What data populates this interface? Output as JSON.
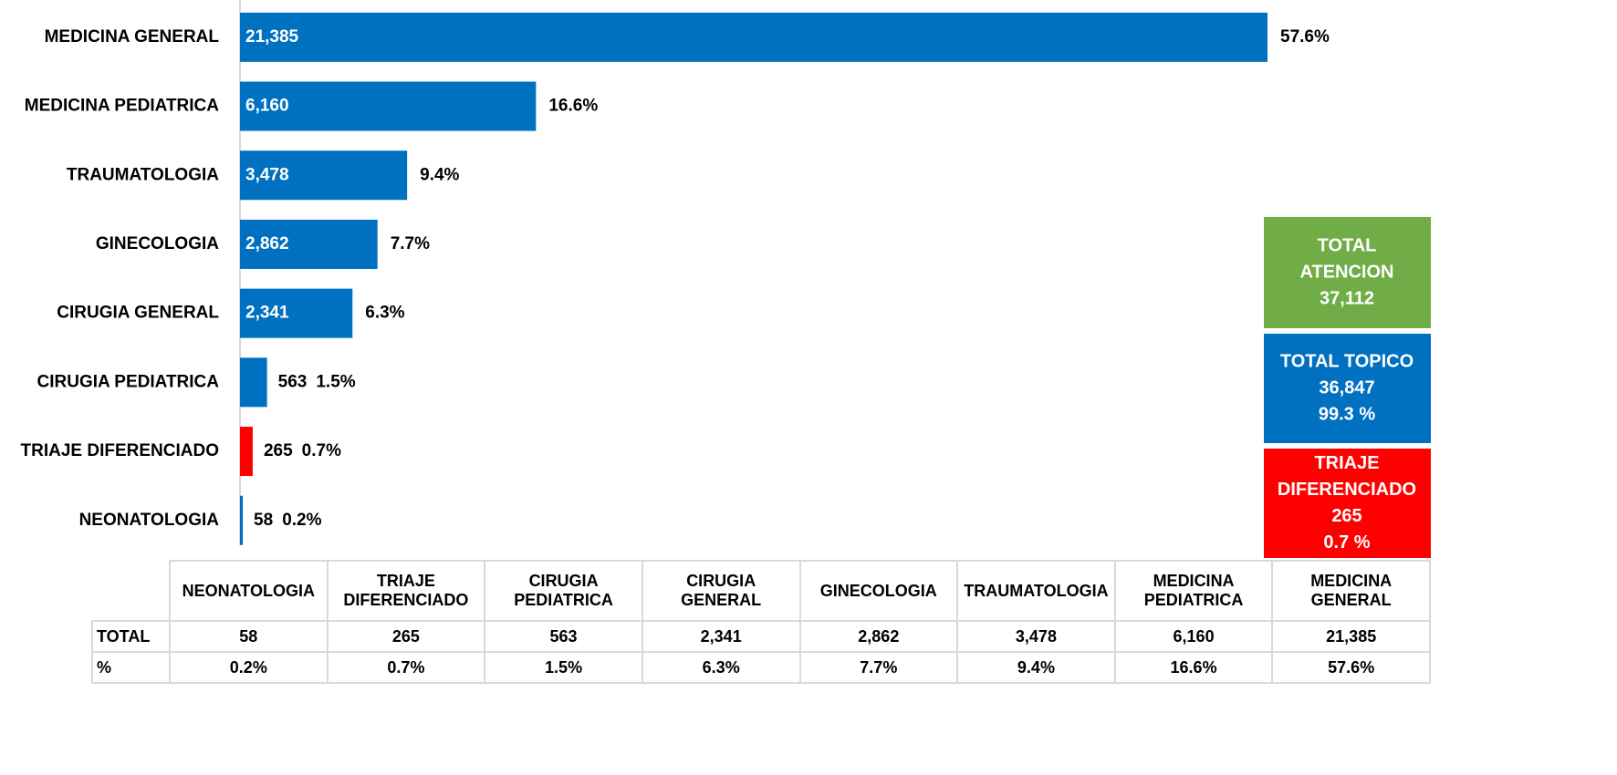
{
  "chart_data": {
    "type": "hbar",
    "categories": [
      "MEDICINA GENERAL",
      "MEDICINA PEDIATRICA",
      "TRAUMATOLOGIA",
      "GINECOLOGIA",
      "CIRUGIA GENERAL",
      "CIRUGIA PEDIATRICA",
      "TRIAJE DIFERENCIADO",
      "NEONATOLOGIA"
    ],
    "values": [
      21385,
      6160,
      3478,
      2862,
      2341,
      563,
      265,
      58
    ],
    "value_labels": [
      "21,385",
      "6,160",
      "3,478",
      "2,862",
      "2,341",
      "563",
      "265",
      "58"
    ],
    "percent_labels": [
      "57.6%",
      "16.6%",
      "9.4%",
      "7.7%",
      "6.3%",
      "1.5%",
      "0.7%",
      "0.2%"
    ],
    "colors": [
      "#0070c0",
      "#0070c0",
      "#0070c0",
      "#0070c0",
      "#0070c0",
      "#0070c0",
      "#ff0000",
      "#0070c0"
    ]
  },
  "totals": [
    {
      "lines": [
        "TOTAL",
        "ATENCION",
        "37,112"
      ],
      "color": "#70ad47"
    },
    {
      "lines": [
        "TOTAL TOPICO",
        "36,847",
        "99.3 %"
      ],
      "color": "#0070c0"
    },
    {
      "lines": [
        "TRIAJE",
        "DIFERENCIADO",
        "265",
        "0.7 %"
      ],
      "color": "#ff0000"
    }
  ],
  "table": {
    "columns": [
      "NEONATOLOGIA",
      "TRIAJE DIFERENCIADO",
      "CIRUGIA PEDIATRICA",
      "CIRUGIA GENERAL",
      "GINECOLOGIA",
      "TRAUMATOLOGIA",
      "MEDICINA PEDIATRICA",
      "MEDICINA GENERAL"
    ],
    "rows": [
      [
        "TOTAL",
        "58",
        "265",
        "563",
        "2,341",
        "2,862",
        "3,478",
        "6,160",
        "21,385"
      ],
      [
        "%",
        "0.2%",
        "0.7%",
        "1.5%",
        "6.3%",
        "7.7%",
        "9.4%",
        "16.6%",
        "57.6%"
      ]
    ]
  }
}
